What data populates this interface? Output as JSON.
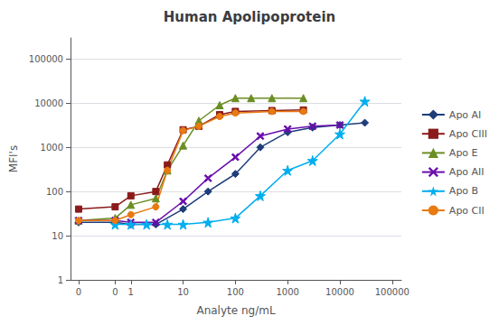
{
  "chart_data": {
    "type": "line",
    "title": "Human Apolipoprotein",
    "xlabel": "Analyte ng/mL",
    "ylabel": "MFI's",
    "log": true,
    "grid": "y",
    "legend": "right",
    "xlim": [
      0.07,
      150000
    ],
    "ylim": [
      1,
      300000
    ],
    "xticks": [
      {
        "value": 0.1,
        "label": "0"
      },
      {
        "value": 0.5,
        "label": "0"
      },
      1,
      10,
      100,
      1000,
      10000,
      100000
    ],
    "yticks": [
      1,
      10,
      100,
      1000,
      10000,
      100000
    ],
    "series": [
      {
        "name": "Apo AI",
        "color": "#1F3D7A",
        "marker": "diamond",
        "x": [
          0.1,
          0.5,
          1.0,
          3.0,
          10.0,
          30.0,
          100.0,
          300.0,
          1000.0,
          3000.0,
          10000.0,
          30000.0
        ],
        "values": [
          20,
          20,
          18,
          18,
          40,
          100,
          250,
          1000,
          2200,
          2800,
          3200,
          3600
        ]
      },
      {
        "name": "Apo CIII",
        "color": "#8B1A1A",
        "marker": "square",
        "x": [
          0.1,
          0.5,
          1.0,
          3.0,
          5.0,
          10.0,
          20.0,
          50.0,
          100.0,
          500.0,
          2000.0
        ],
        "values": [
          40,
          45,
          80,
          100,
          400,
          2500,
          3000,
          5500,
          6500,
          6800,
          7000
        ]
      },
      {
        "name": "Apo E",
        "color": "#6B8E23",
        "marker": "triangle",
        "x": [
          0.1,
          0.5,
          1.0,
          3.0,
          5.0,
          10.0,
          20.0,
          50.0,
          100.0,
          200.0,
          500.0,
          2000.0
        ],
        "values": [
          22,
          25,
          50,
          70,
          300,
          1100,
          4000,
          9000,
          13000,
          13000,
          13000,
          13000
        ]
      },
      {
        "name": "Apo AII",
        "color": "#6A0DAD",
        "marker": "x",
        "x": [
          0.1,
          0.5,
          1.0,
          3.0,
          10.0,
          30.0,
          100.0,
          300.0,
          1000.0,
          3000.0,
          10000.0
        ],
        "values": [
          22,
          22,
          20,
          20,
          60,
          200,
          600,
          1800,
          2600,
          3000,
          3200
        ]
      },
      {
        "name": "Apo B",
        "color": "#00AEEF",
        "marker": "star",
        "x": [
          0.5,
          1.0,
          2.0,
          5.0,
          10.0,
          30.0,
          100.0,
          300.0,
          1000.0,
          3000.0,
          10000.0,
          30000.0
        ],
        "values": [
          18,
          18,
          18,
          18,
          18,
          20,
          25,
          80,
          300,
          500,
          2000,
          11000
        ]
      },
      {
        "name": "Apo CII",
        "color": "#E87A10",
        "marker": "circle",
        "x": [
          0.1,
          0.5,
          1.0,
          3.0,
          5.0,
          10.0,
          20.0,
          50.0,
          100.0,
          500.0,
          2000.0
        ],
        "values": [
          22,
          22,
          30,
          45,
          300,
          2400,
          3000,
          5000,
          6000,
          6500,
          6500
        ]
      }
    ]
  }
}
